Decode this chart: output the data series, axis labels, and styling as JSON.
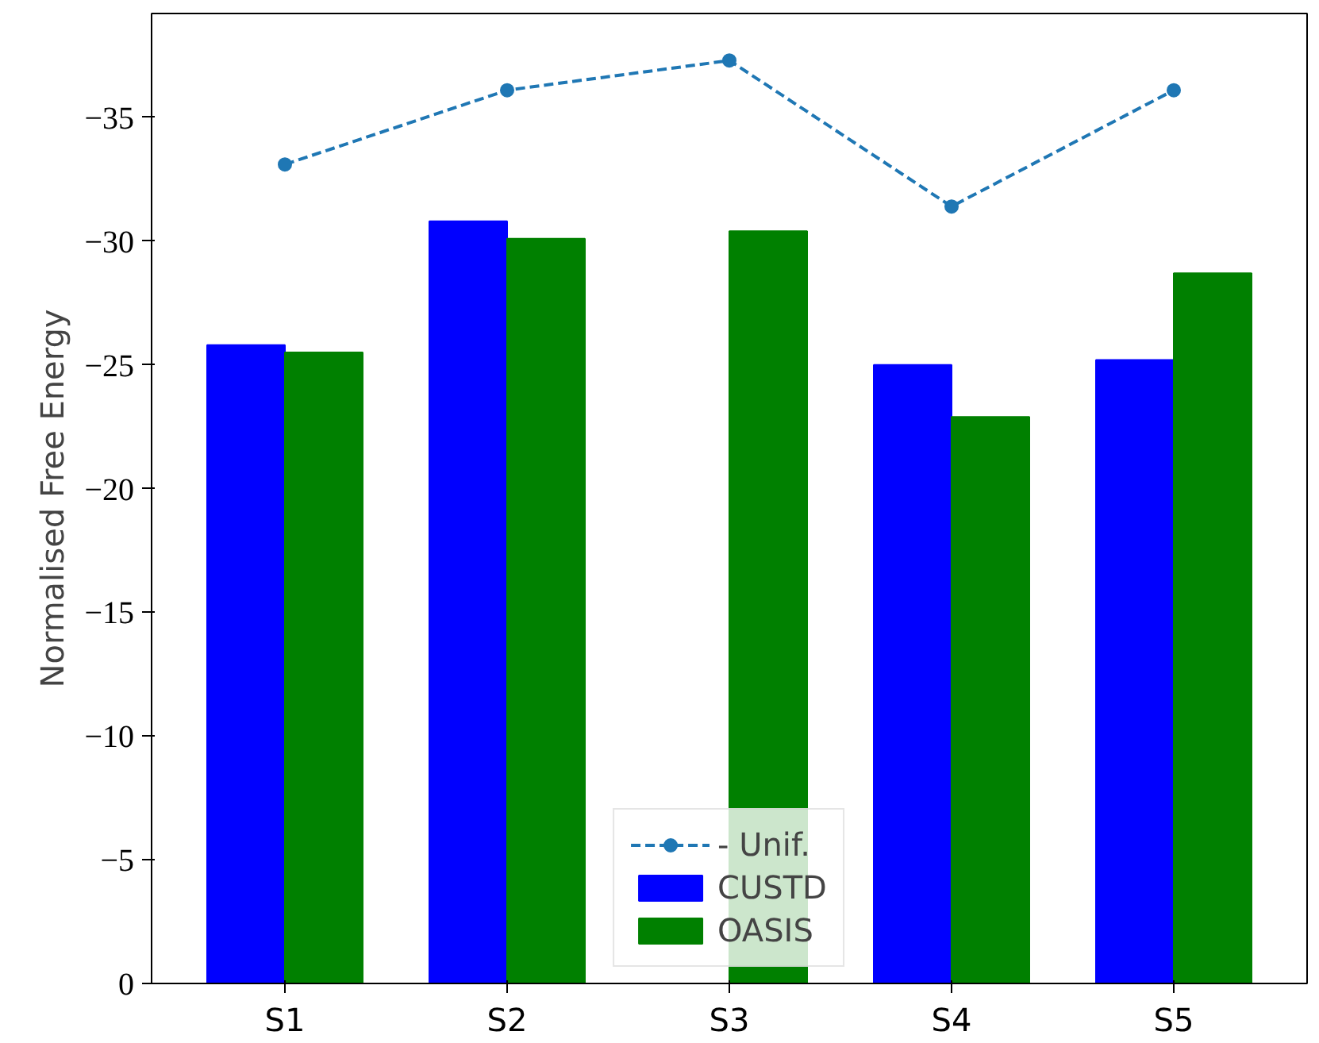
{
  "chart_data": {
    "type": "bar",
    "ylabel": "Normalised Free Energy",
    "categories": [
      "S1",
      "S2",
      "S3",
      "S4",
      "S5"
    ],
    "series": [
      {
        "name": "- Unif.",
        "type": "line",
        "color": "#1f77b4",
        "marker": "circle",
        "line_style": "dashed",
        "values": [
          -33.1,
          -36.1,
          -37.3,
          -31.4,
          -36.1
        ]
      },
      {
        "name": "CUSTD",
        "color": "#0000ff",
        "values": [
          -25.8,
          -30.8,
          null,
          -25.0,
          -25.2
        ]
      },
      {
        "name": "OASIS",
        "color": "#008000",
        "values": [
          -25.5,
          -30.1,
          -30.4,
          -22.9,
          -28.7
        ]
      }
    ],
    "ylim": [
      0,
      -39.2
    ],
    "yticks": [
      0,
      {
        "value": -5,
        "label": "−5"
      },
      {
        "value": -10,
        "label": "−10"
      },
      {
        "value": -15,
        "label": "−15"
      },
      {
        "value": -20,
        "label": "−20"
      },
      {
        "value": -25,
        "label": "−25"
      },
      {
        "value": -30,
        "label": "−30"
      },
      {
        "value": -35,
        "label": "−35"
      }
    ],
    "grid": false,
    "legend": "bottom"
  }
}
